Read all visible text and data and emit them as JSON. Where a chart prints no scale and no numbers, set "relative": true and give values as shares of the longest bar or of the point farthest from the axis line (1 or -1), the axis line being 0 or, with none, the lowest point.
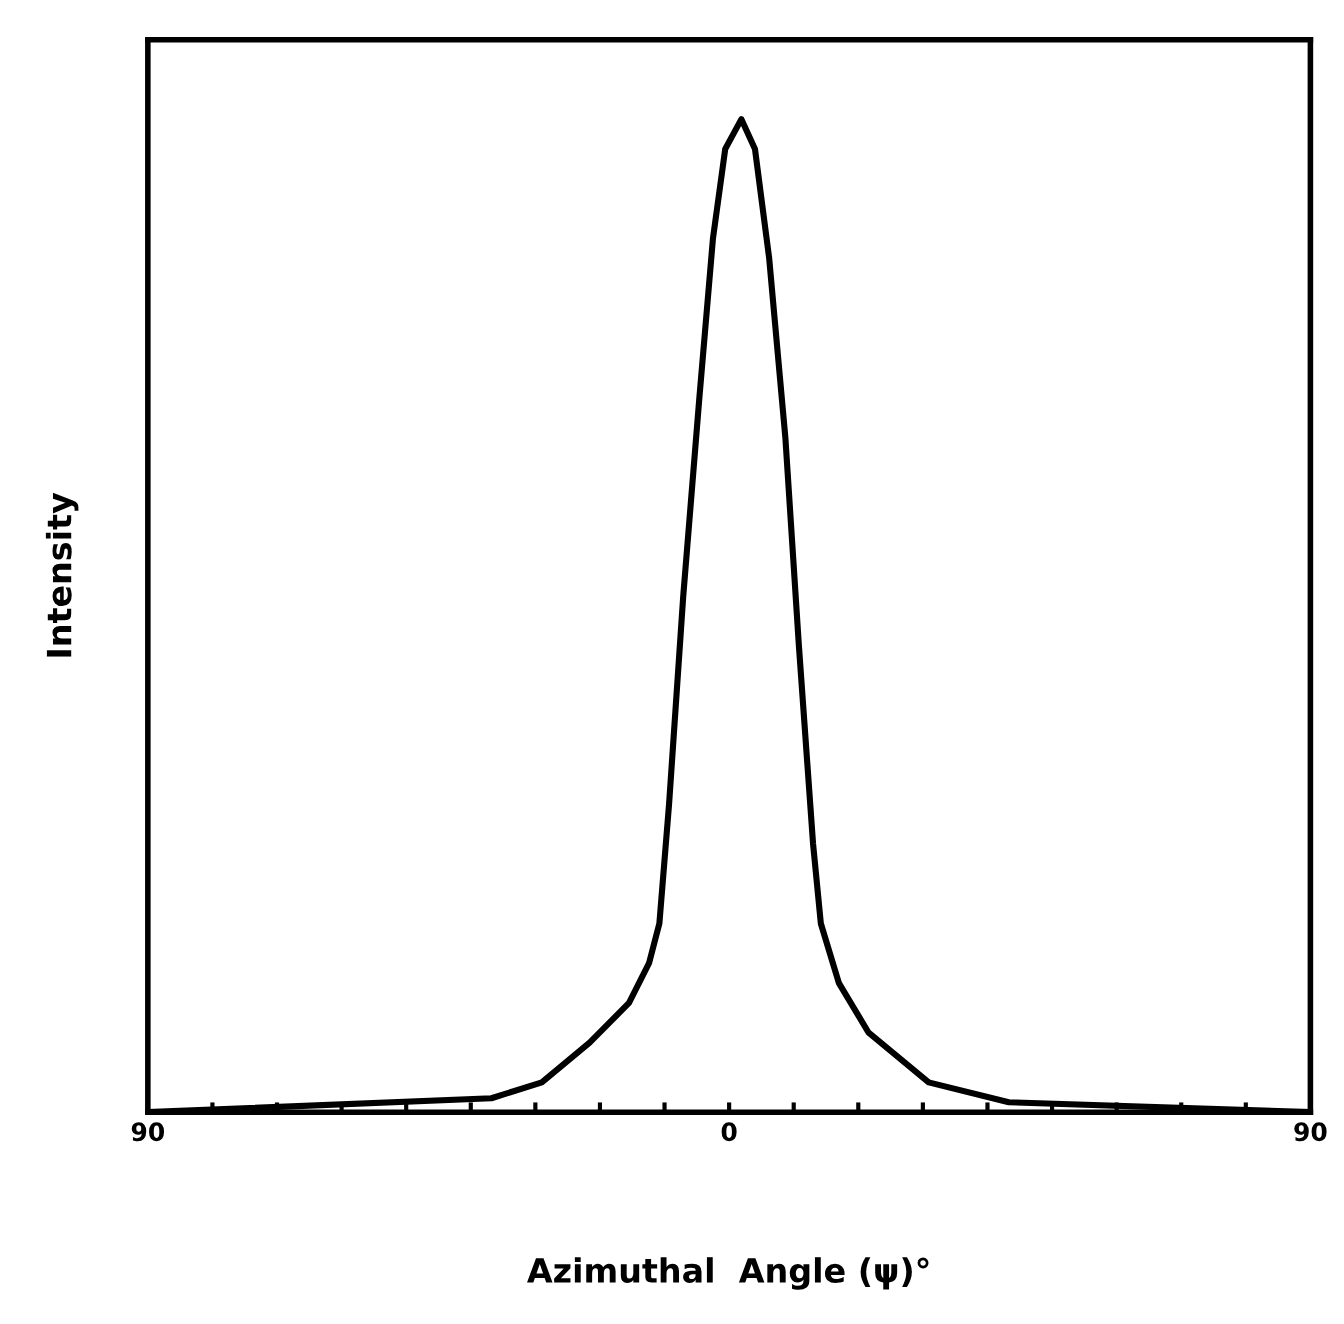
{
  "chart_data": {
    "type": "line",
    "xlabel": "Azimuthal  Angle (ψ)°",
    "ylabel": "Intensity",
    "relative": true,
    "xlim": [
      -90,
      90
    ],
    "xticks": [
      {
        "value": -90,
        "label": "90"
      },
      {
        "value": -80,
        "label": null
      },
      {
        "value": -70,
        "label": null
      },
      {
        "value": -60,
        "label": null
      },
      {
        "value": -50,
        "label": null
      },
      {
        "value": -40,
        "label": null
      },
      {
        "value": -30,
        "label": null
      },
      {
        "value": -20,
        "label": null
      },
      {
        "value": -10,
        "label": null
      },
      0,
      {
        "value": 10,
        "label": null
      },
      {
        "value": 20,
        "label": null
      },
      {
        "value": 30,
        "label": null
      },
      {
        "value": 40,
        "label": null
      },
      {
        "value": 50,
        "label": null
      },
      {
        "value": 60,
        "label": null
      },
      {
        "value": 70,
        "label": null
      },
      {
        "value": 80,
        "label": null
      },
      90
    ],
    "grid": false,
    "marker": "none",
    "line_style": "solid",
    "series": [
      {
        "color": "#000000",
        "x": [
          -90,
          -36.8,
          -29,
          -21.6,
          -15.5,
          -12.4,
          -10.8,
          -9.3,
          -7.1,
          -4.6,
          -2.5,
          -0.6,
          1.9,
          4.0,
          6.2,
          8.7,
          10.8,
          13.0,
          14.2,
          17.0,
          21.6,
          30.9,
          43.3,
          90
        ],
        "values": [
          0.0,
          0.014,
          0.03,
          0.07,
          0.11,
          0.15,
          0.19,
          0.31,
          0.52,
          0.72,
          0.88,
          0.97,
          1.0,
          0.97,
          0.86,
          0.68,
          0.47,
          0.27,
          0.19,
          0.13,
          0.08,
          0.03,
          0.01,
          0.0
        ]
      }
    ]
  }
}
